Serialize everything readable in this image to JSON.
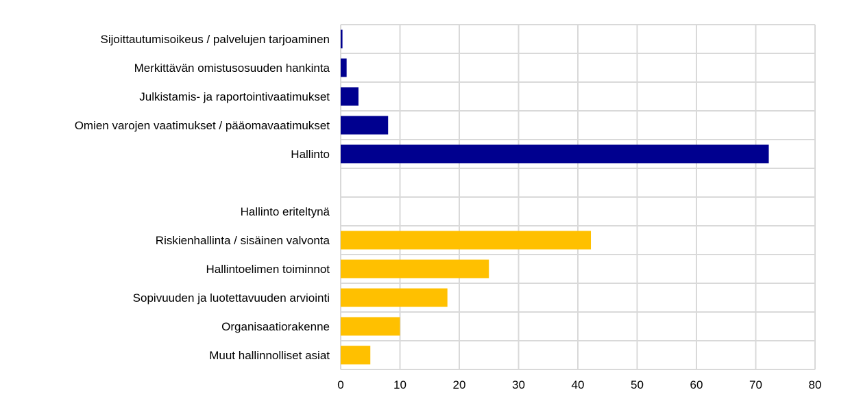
{
  "chart_data": {
    "type": "bar",
    "orientation": "horizontal",
    "categories": [
      "Sijoittautumisoikeus / palvelujen tarjoaminen",
      "Merkittävän omistusosuuden hankinta",
      "Julkistamis- ja raportointivaatimukset",
      "Omien varojen vaatimukset / pääomavaatimukset",
      "Hallinto",
      "",
      "Hallinto eriteltynä",
      "Riskienhallinta / sisäinen valvonta",
      "Hallintoelimen toiminnot",
      "Sopivuuden ja luotettavuuden arviointi",
      "Organisaatiorakenne",
      "Muut hallinnolliset asiat"
    ],
    "values": [
      0.3,
      1,
      3,
      8,
      72.2,
      null,
      null,
      42.2,
      25,
      18,
      10,
      5
    ],
    "bar_colors": [
      "#00008f",
      "#00008f",
      "#00008f",
      "#00008f",
      "#00008f",
      null,
      null,
      "#ffc000",
      "#ffc000",
      "#ffc000",
      "#ffc000",
      "#ffc000"
    ],
    "xlim": [
      0,
      80
    ],
    "xticks": [
      0,
      10,
      20,
      30,
      40,
      50,
      60,
      70,
      80
    ],
    "grid": true,
    "title": "",
    "xlabel": "",
    "ylabel": ""
  },
  "colors": {
    "primary_series": "#00008f",
    "secondary_series": "#ffc000",
    "grid": "#d9d9d9"
  }
}
